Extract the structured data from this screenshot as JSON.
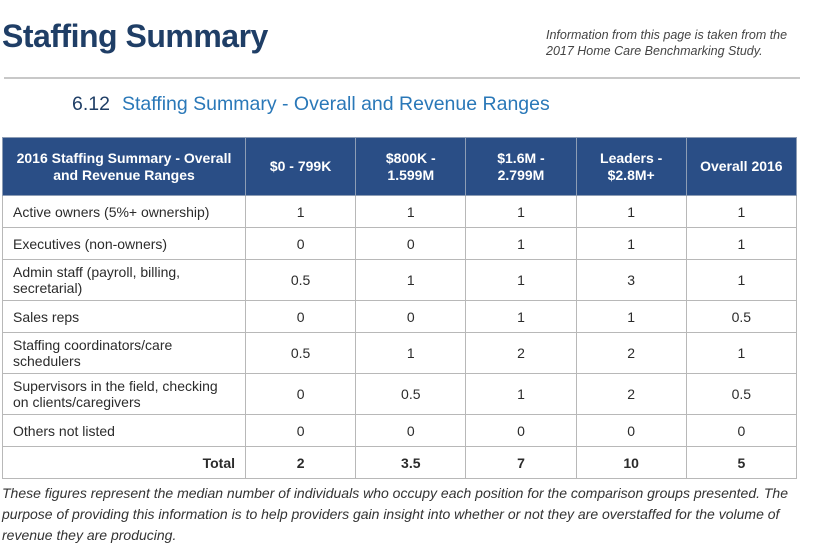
{
  "header": {
    "title": "Staffing Summary",
    "source_note": "Information from this page is taken from the 2017 Home Care Benchmarking Study."
  },
  "section": {
    "number": "6.12",
    "title": "Staffing Summary - Overall and Revenue Ranges"
  },
  "table": {
    "columns": [
      "2016 Staffing Summary - Overall and Revenue Ranges",
      "$0 - 799K",
      "$800K - 1.599M",
      "$1.6M - 2.799M",
      "Leaders - $2.8M+",
      "Overall 2016"
    ],
    "rows": [
      {
        "label": "Active owners (5%+ ownership)",
        "values": [
          "1",
          "1",
          "1",
          "1",
          "1"
        ]
      },
      {
        "label": "Executives (non-owners)",
        "values": [
          "0",
          "0",
          "1",
          "1",
          "1"
        ]
      },
      {
        "label": "Admin staff (payroll, billing, secretarial)",
        "values": [
          "0.5",
          "1",
          "1",
          "3",
          "1"
        ]
      },
      {
        "label": "Sales reps",
        "values": [
          "0",
          "0",
          "1",
          "1",
          "0.5"
        ]
      },
      {
        "label": "Staffing coordinators/care schedulers",
        "values": [
          "0.5",
          "1",
          "2",
          "2",
          "1"
        ]
      },
      {
        "label": "Supervisors in the field, checking on clients/caregivers",
        "values": [
          "0",
          "0.5",
          "1",
          "2",
          "0.5"
        ]
      },
      {
        "label": "Others not listed",
        "values": [
          "0",
          "0",
          "0",
          "0",
          "0"
        ]
      }
    ],
    "total": {
      "label": "Total",
      "values": [
        "2",
        "3.5",
        "7",
        "10",
        "5"
      ]
    }
  },
  "footnote": "These figures represent the median number of individuals who occupy each position for the comparison groups presented. The purpose of providing this information is to help providers gain insight into whether or not they are overstaffed for the volume of revenue they are producing.",
  "colors": {
    "title": "#1f3e66",
    "heading": "#2a78b8",
    "table_header_bg": "#2a4e86"
  }
}
